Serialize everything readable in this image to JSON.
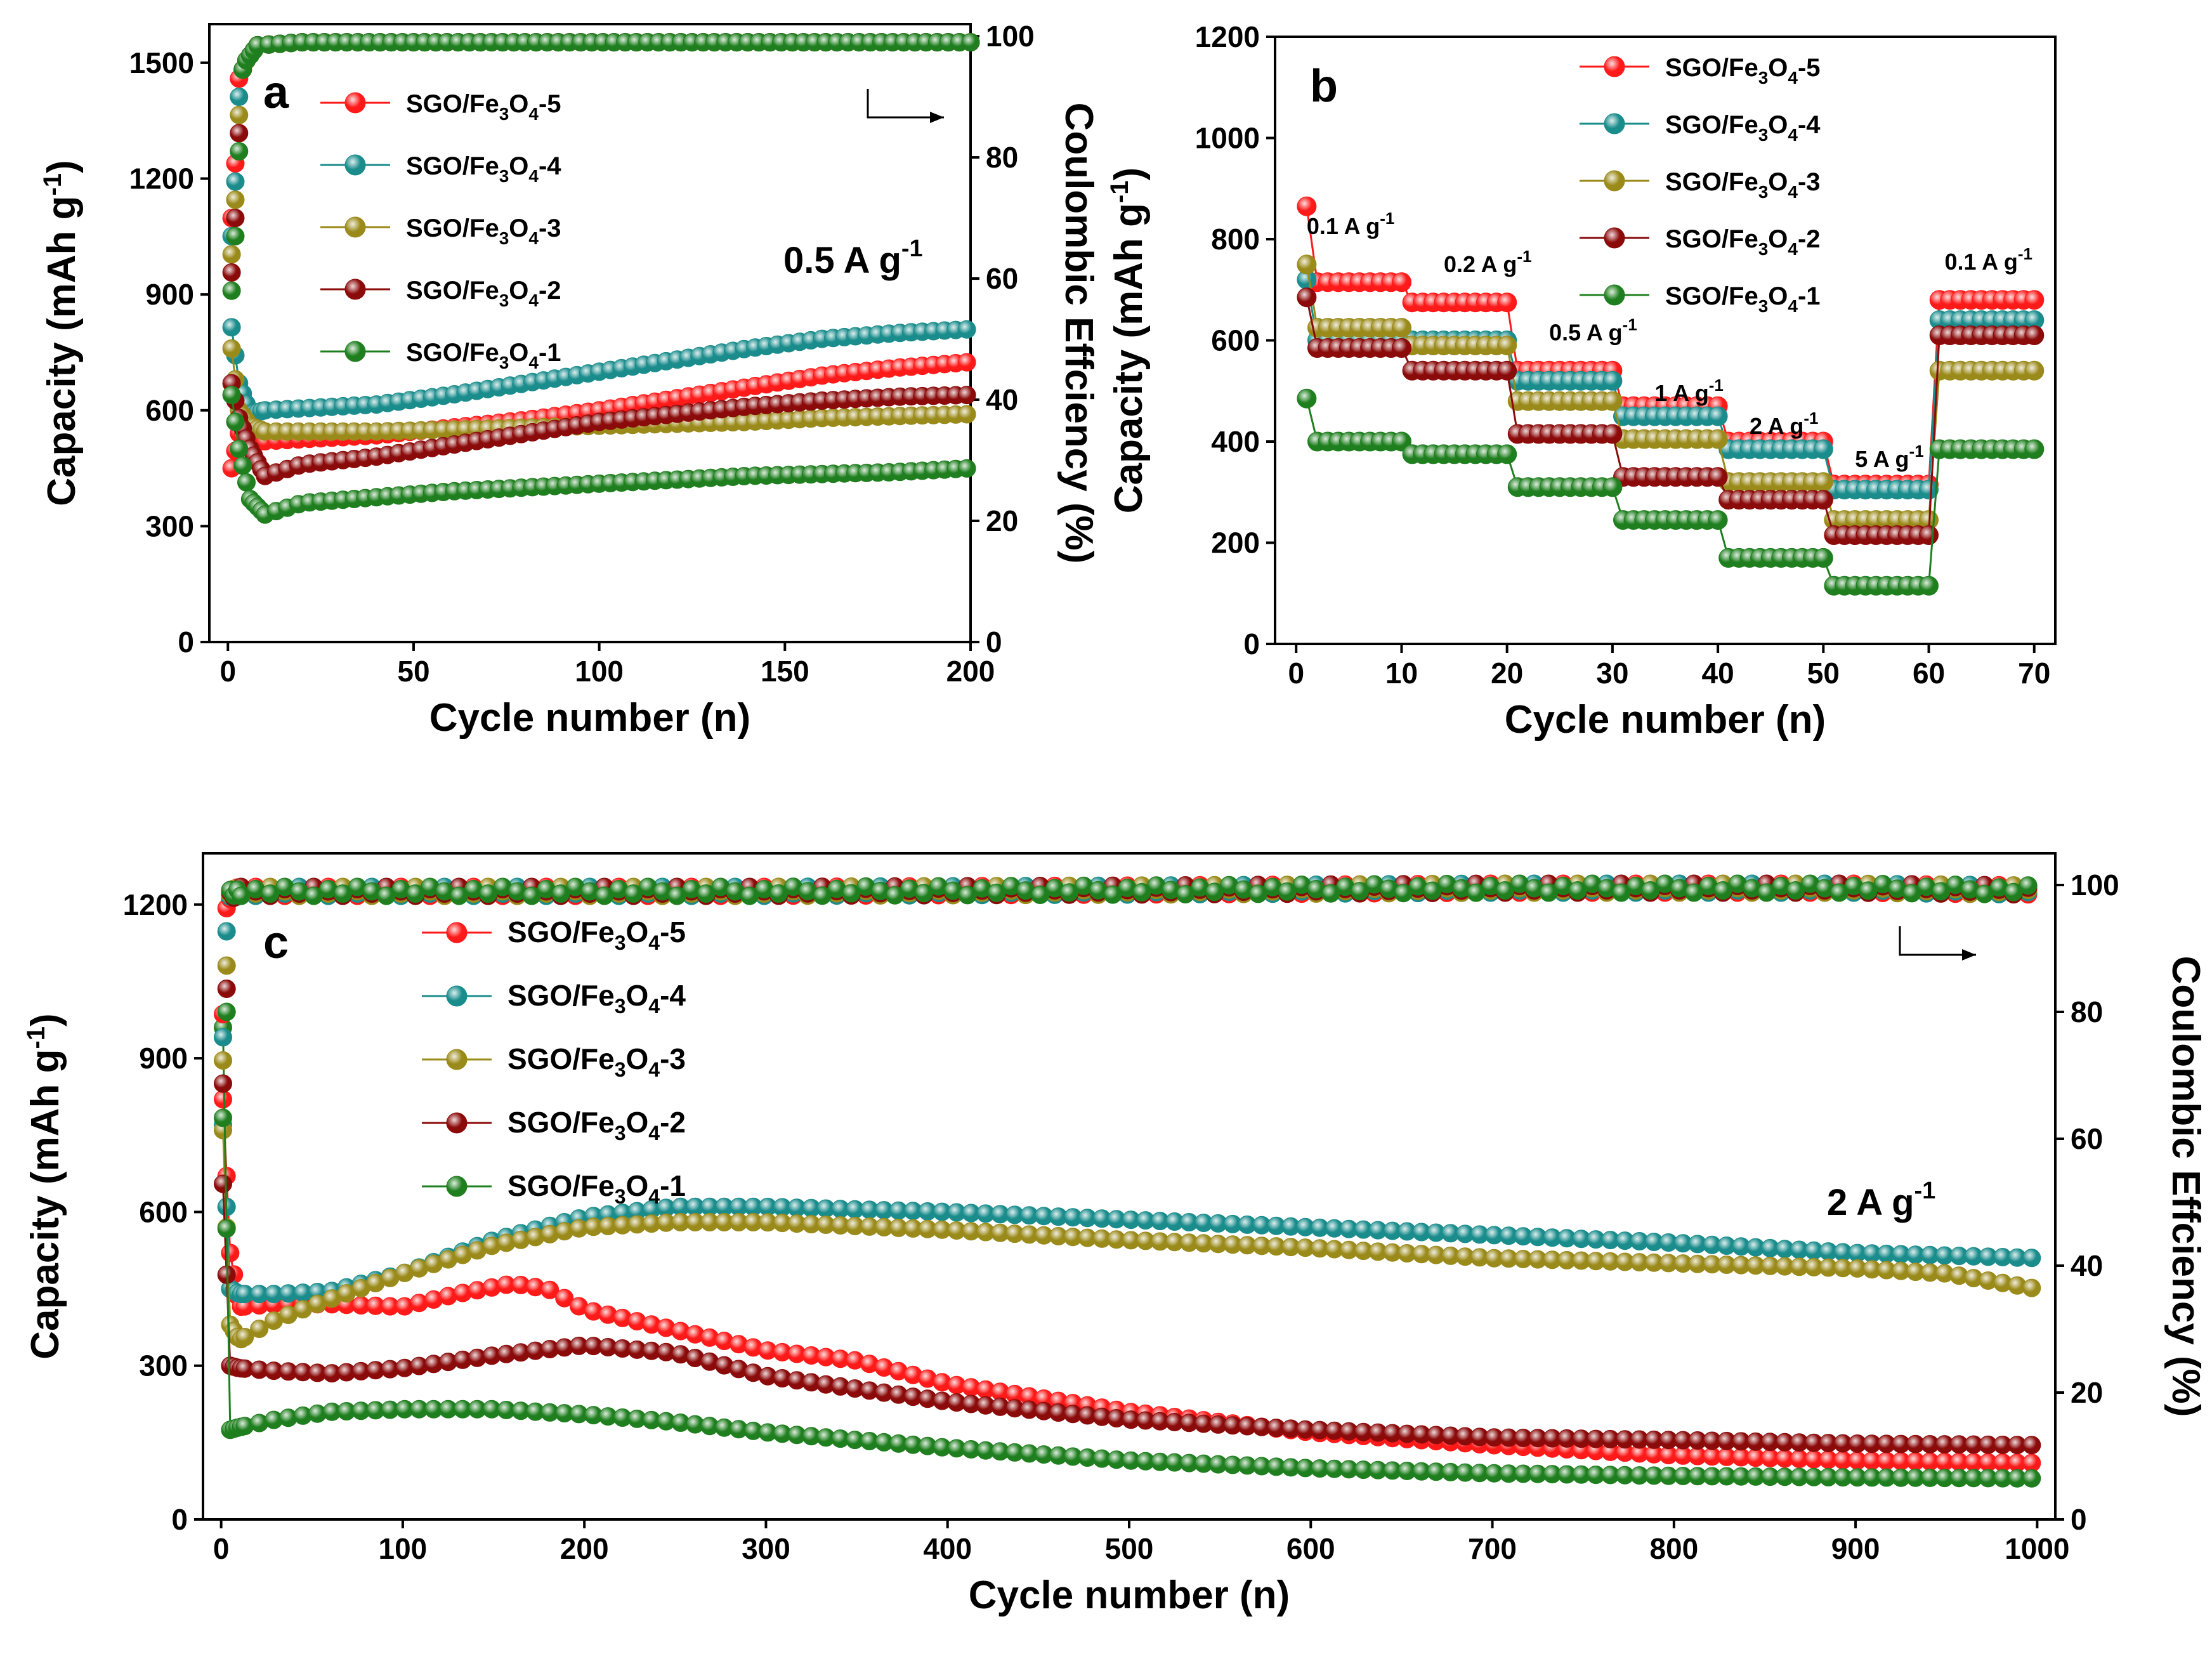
{
  "series_colors": {
    "SGO/Fe3O4-5": "#ff1a1a",
    "SGO/Fe3O4-4": "#1a8c8c",
    "SGO/Fe3O4-3": "#9a8a1a",
    "SGO/Fe3O4-2": "#8b0a0a",
    "SGO/Fe3O4-1": "#1f7f1f"
  },
  "chart_data": [
    {
      "panel": "a",
      "type": "scatter",
      "xlabel": "Cycle number (n)",
      "ylabel": "Capacity (mAh g-1)",
      "ylabel_main": "Capacity (mAh g",
      "ylabel_sup": "-1",
      "ylabel_close": ")",
      "y2label": "Coulombic Effciency (%)",
      "xlim": [
        -5,
        200
      ],
      "ylim": [
        0,
        1600
      ],
      "y2lim": [
        0,
        102
      ],
      "xticks": [
        0,
        50,
        100,
        150,
        200
      ],
      "yticks": [
        0,
        300,
        600,
        900,
        1200,
        1500
      ],
      "y2ticks": [
        0,
        20,
        40,
        60,
        80,
        100
      ],
      "condition": "0.5 A g-1",
      "condition_main": "0.5 A g",
      "condition_sup": "-1",
      "legend_position": "top-left",
      "series": [
        {
          "name": "SGO/Fe3O4-5",
          "x": [
            1,
            3,
            6,
            10,
            20,
            40,
            60,
            80,
            100,
            120,
            140,
            160,
            180,
            200
          ],
          "values": [
            450,
            540,
            520,
            520,
            525,
            535,
            555,
            575,
            600,
            630,
            660,
            690,
            710,
            725
          ]
        },
        {
          "name": "SGO/Fe3O4-4",
          "x": [
            1,
            3,
            6,
            10,
            20,
            40,
            60,
            80,
            100,
            120,
            140,
            160,
            180,
            200
          ],
          "values": [
            815,
            670,
            590,
            600,
            605,
            615,
            640,
            670,
            700,
            730,
            760,
            785,
            800,
            810
          ]
        },
        {
          "name": "SGO/Fe3O4-3",
          "x": [
            1,
            3,
            6,
            10,
            20,
            40,
            60,
            80,
            100,
            120,
            140,
            160,
            180,
            200
          ],
          "values": [
            760,
            600,
            560,
            545,
            545,
            545,
            550,
            555,
            560,
            565,
            570,
            580,
            585,
            590
          ]
        },
        {
          "name": "SGO/Fe3O4-2",
          "x": [
            1,
            3,
            6,
            10,
            20,
            40,
            60,
            80,
            100,
            120,
            140,
            160,
            180,
            200
          ],
          "values": [
            670,
            580,
            500,
            430,
            460,
            480,
            510,
            540,
            570,
            590,
            610,
            625,
            635,
            640
          ]
        },
        {
          "name": "SGO/Fe3O4-1",
          "x": [
            1,
            3,
            6,
            10,
            20,
            40,
            60,
            80,
            100,
            120,
            140,
            160,
            180,
            200
          ],
          "values": [
            640,
            500,
            370,
            330,
            360,
            375,
            390,
            400,
            410,
            420,
            430,
            435,
            440,
            450
          ]
        }
      ],
      "efficiency": {
        "x": [
          1,
          2,
          3,
          5,
          8,
          20,
          50,
          100,
          150,
          200
        ],
        "values": [
          70,
          79,
          93,
          96,
          98.5,
          99,
          99,
          99,
          99,
          99
        ]
      }
    },
    {
      "panel": "b",
      "type": "scatter",
      "xlabel": "Cycle number (n)",
      "ylabel": "Capacity (mAh g-1)",
      "ylabel_main": "Capacity (mAh g",
      "ylabel_sup": "-1",
      "ylabel_close": ")",
      "xlim": [
        -2,
        72
      ],
      "ylim": [
        0,
        1200
      ],
      "xticks": [
        0,
        10,
        20,
        30,
        40,
        50,
        60,
        70
      ],
      "yticks": [
        0,
        200,
        400,
        600,
        800,
        1000,
        1200
      ],
      "legend_position": "top-center",
      "rate_labels": [
        {
          "main": "0.1 A g",
          "sup": "-1",
          "x": 1,
          "y": 810
        },
        {
          "main": "0.2 A g",
          "sup": "-1",
          "x": 14,
          "y": 735
        },
        {
          "main": "0.5 A g",
          "sup": "-1",
          "x": 24,
          "y": 600
        },
        {
          "main": "1 A g",
          "sup": "-1",
          "x": 34,
          "y": 480
        },
        {
          "main": "2 A g",
          "sup": "-1",
          "x": 43,
          "y": 415
        },
        {
          "main": "5 A g",
          "sup": "-1",
          "x": 53,
          "y": 350
        },
        {
          "main": "0.1 A g",
          "sup": "-1",
          "x": 61.5,
          "y": 740
        }
      ],
      "steps": [
        [
          1,
          10
        ],
        [
          11,
          20
        ],
        [
          21,
          30
        ],
        [
          31,
          40
        ],
        [
          41,
          50
        ],
        [
          51,
          60
        ],
        [
          61,
          70
        ]
      ],
      "series": [
        {
          "name": "SGO/Fe3O4-5",
          "first": 865,
          "step_values": [
            715,
            675,
            540,
            470,
            400,
            315,
            680
          ]
        },
        {
          "name": "SGO/Fe3O4-4",
          "first": 720,
          "step_values": [
            600,
            600,
            520,
            450,
            385,
            305,
            640
          ]
        },
        {
          "name": "SGO/Fe3O4-3",
          "first": 750,
          "step_values": [
            625,
            590,
            480,
            405,
            320,
            245,
            540
          ]
        },
        {
          "name": "SGO/Fe3O4-2",
          "first": 685,
          "step_values": [
            585,
            540,
            415,
            330,
            285,
            215,
            610
          ]
        },
        {
          "name": "SGO/Fe3O4-1",
          "first": 485,
          "step_values": [
            400,
            375,
            310,
            245,
            170,
            115,
            385
          ]
        }
      ]
    },
    {
      "panel": "c",
      "type": "scatter",
      "xlabel": "Cycle number (n)",
      "ylabel": "Capacity (mAh g-1)",
      "ylabel_main": "Capacity (mAh g",
      "ylabel_sup": "-1",
      "ylabel_close": ")",
      "y2label": "Coulombic Effciency (%)",
      "xlim": [
        -10,
        1010
      ],
      "ylim": [
        0,
        1300
      ],
      "y2lim": [
        0,
        105
      ],
      "xticks": [
        0,
        100,
        200,
        300,
        400,
        500,
        600,
        700,
        800,
        900,
        1000
      ],
      "yticks": [
        0,
        300,
        600,
        900,
        1200
      ],
      "y2ticks": [
        0,
        20,
        40,
        60,
        80,
        100
      ],
      "condition": "2 A g-1",
      "condition_main": "2 A g",
      "condition_sup": "-1",
      "legend_position": "top-left",
      "series": [
        {
          "name": "SGO/Fe3O4-5",
          "x": [
            1,
            5,
            10,
            30,
            60,
            100,
            130,
            160,
            180,
            200,
            250,
            300,
            350,
            400,
            500,
            600,
            700,
            800,
            900,
            1000
          ],
          "values": [
            820,
            520,
            415,
            420,
            420,
            415,
            440,
            460,
            450,
            410,
            370,
            330,
            310,
            265,
            210,
            170,
            145,
            125,
            115,
            110
          ]
        },
        {
          "name": "SGO/Fe3O4-4",
          "x": [
            1,
            5,
            10,
            30,
            60,
            100,
            150,
            200,
            250,
            300,
            400,
            500,
            600,
            700,
            800,
            900,
            1000
          ],
          "values": [
            770,
            450,
            440,
            440,
            445,
            480,
            545,
            590,
            610,
            610,
            600,
            585,
            570,
            555,
            540,
            520,
            510
          ]
        },
        {
          "name": "SGO/Fe3O4-3",
          "x": [
            1,
            5,
            10,
            30,
            60,
            100,
            150,
            200,
            250,
            300,
            400,
            500,
            600,
            700,
            800,
            900,
            950,
            1000
          ],
          "values": [
            760,
            380,
            350,
            390,
            430,
            480,
            535,
            570,
            580,
            580,
            565,
            545,
            530,
            510,
            500,
            490,
            480,
            450
          ]
        },
        {
          "name": "SGO/Fe3O4-2",
          "x": [
            1,
            5,
            10,
            30,
            60,
            100,
            150,
            200,
            250,
            300,
            400,
            500,
            600,
            700,
            800,
            900,
            1000
          ],
          "values": [
            655,
            300,
            295,
            290,
            285,
            295,
            320,
            340,
            325,
            280,
            230,
            195,
            175,
            160,
            155,
            148,
            145
          ]
        },
        {
          "name": "SGO/Fe3O4-1",
          "x": [
            1,
            5,
            10,
            30,
            60,
            100,
            150,
            200,
            250,
            300,
            400,
            500,
            600,
            700,
            800,
            900,
            1000
          ],
          "values": [
            960,
            175,
            180,
            195,
            210,
            215,
            215,
            205,
            190,
            170,
            140,
            115,
            100,
            90,
            85,
            82,
            80
          ]
        }
      ],
      "efficiency": {
        "x": [
          1,
          3,
          5,
          10,
          50,
          100,
          300,
          500,
          700,
          900,
          1000
        ],
        "values": [
          80,
          96,
          98.5,
          99,
          99,
          99,
          99,
          99.2,
          99.5,
          99.5,
          99.2
        ]
      }
    }
  ]
}
